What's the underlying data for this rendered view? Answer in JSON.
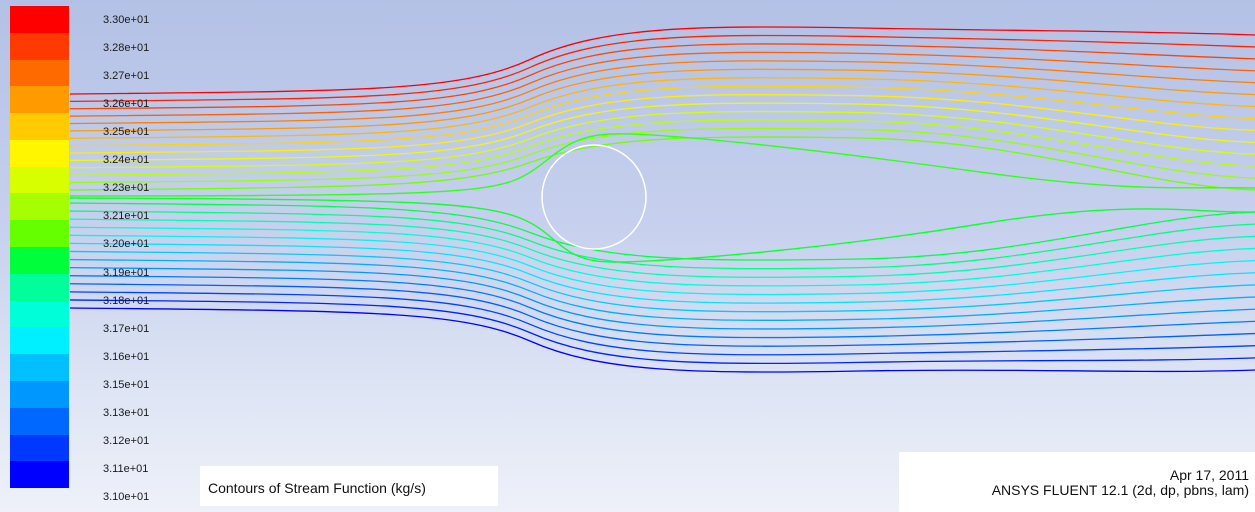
{
  "plot": {
    "title": "Contours of Stream Function (kg/s)",
    "date": "Apr 17, 2011",
    "software": "ANSYS FLUENT 12.1 (2d, dp, pbns, lam)"
  },
  "colorbar": {
    "labels": [
      "3.30e+01",
      "3.28e+01",
      "3.27e+01",
      "3.26e+01",
      "3.25e+01",
      "3.24e+01",
      "3.23e+01",
      "3.21e+01",
      "3.20e+01",
      "3.19e+01",
      "3.18e+01",
      "3.17e+01",
      "3.16e+01",
      "3.15e+01",
      "3.13e+01",
      "3.12e+01",
      "3.11e+01",
      "3.10e+01"
    ],
    "colors": [
      "#ff0000",
      "#ff3a00",
      "#ff6a00",
      "#ff9a00",
      "#ffcb00",
      "#fff600",
      "#d8ff00",
      "#a6ff00",
      "#66ff00",
      "#00ff3a",
      "#00ff9a",
      "#00ffd8",
      "#00f0ff",
      "#00c0ff",
      "#0098ff",
      "#0068ff",
      "#0038ff",
      "#0000ff"
    ]
  },
  "obstacle": {
    "shape": "circle",
    "color": "#ffffff"
  }
}
